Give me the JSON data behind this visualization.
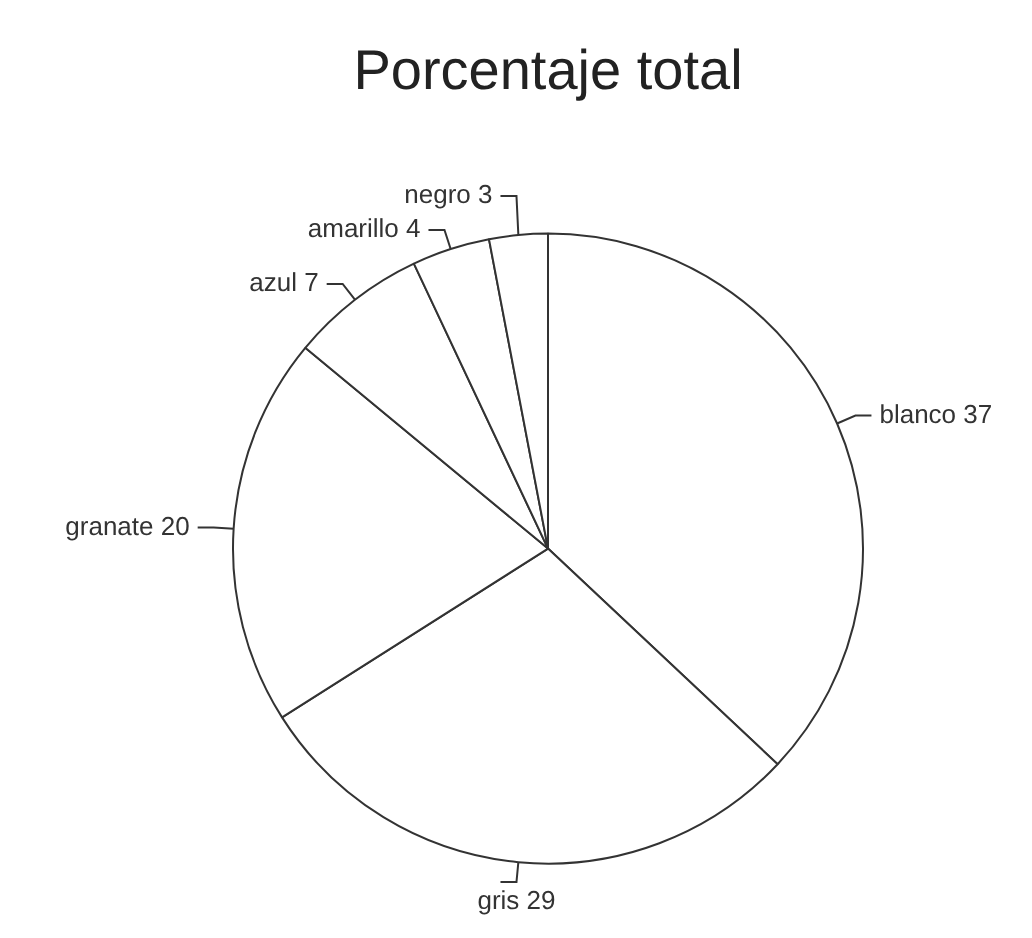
{
  "chart_data": {
    "type": "pie",
    "title": "Porcentaje total",
    "categories": [
      "blanco 37",
      "gris 29",
      "granate 20",
      "azul 7",
      "amarillo 4",
      "negro 3"
    ],
    "values": [
      37,
      29,
      20,
      7,
      4,
      3
    ],
    "colors": [
      "#ffffff",
      "#ffffff",
      "#ffffff",
      "#ffffff",
      "#ffffff",
      "#ffffff"
    ],
    "legend": false
  }
}
